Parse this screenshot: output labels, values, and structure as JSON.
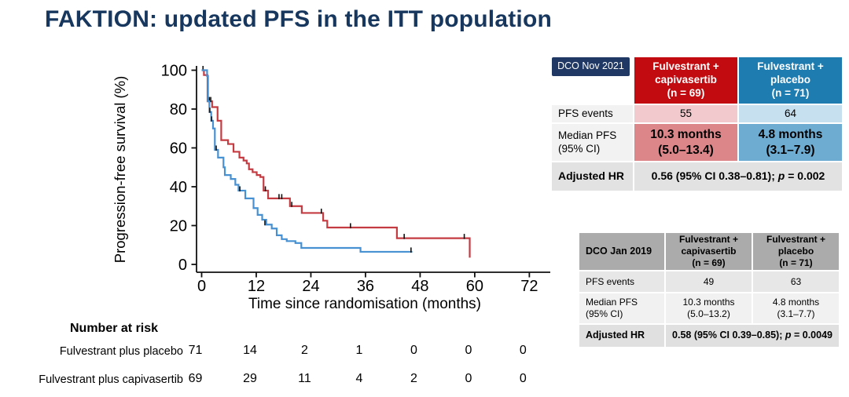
{
  "title": "FAKTION: updated PFS in the ITT population",
  "colors": {
    "title_navy": "#17375E",
    "navy_box": "#1F3864",
    "red_header": "#C20B10",
    "blue_header": "#1E7CB0",
    "pink_light": "#F2C9CC",
    "blue_light": "#C6E0EF",
    "pink_mid": "#DD868A",
    "blue_mid": "#6FACD2",
    "gray_label": "#F2F2F2",
    "gray_row": "#E2E2E2",
    "gray_header": "#ABABAB",
    "gray_row_a": "#E7E7E7",
    "gray_row_b": "#F1F1F1",
    "gray_row_dark": "#E0E0E0",
    "curve_red": "#C43B42",
    "curve_blue": "#4791D2",
    "axis_black": "#111111"
  },
  "chart_data": {
    "type": "line",
    "subtype": "kaplan-meier-step",
    "title": "",
    "xlabel": "Time since randomisation (months)",
    "ylabel": "Progression-free survival (%)",
    "xlim": [
      0,
      76
    ],
    "ylim": [
      0,
      100
    ],
    "xticks": [
      0,
      12,
      24,
      36,
      48,
      60,
      72
    ],
    "yticks": [
      0,
      20,
      40,
      60,
      80,
      100
    ],
    "grid": false,
    "legend": "none",
    "series": [
      {
        "name": "Fulvestrant plus capivasertib",
        "color_key": "curve_red",
        "steps": [
          [
            0,
            100
          ],
          [
            0.5,
            97.5
          ],
          [
            1.3,
            84
          ],
          [
            2.3,
            81
          ],
          [
            3.5,
            74
          ],
          [
            4.3,
            64
          ],
          [
            5.8,
            62
          ],
          [
            7.0,
            58
          ],
          [
            8.3,
            55
          ],
          [
            9.2,
            53.5
          ],
          [
            9.9,
            52
          ],
          [
            10.4,
            49
          ],
          [
            11.2,
            47.5
          ],
          [
            12.1,
            46
          ],
          [
            12.9,
            45
          ],
          [
            13.6,
            38
          ],
          [
            14.6,
            34
          ],
          [
            19.4,
            30
          ],
          [
            22.0,
            26.5
          ],
          [
            26.7,
            22.5
          ],
          [
            27.6,
            19
          ],
          [
            42.9,
            13.5
          ],
          [
            58.9,
            3.5
          ]
        ],
        "censors": [
          [
            0.3,
            100
          ],
          [
            1.7,
            84
          ],
          [
            2.0,
            84
          ],
          [
            14.0,
            38
          ],
          [
            17.0,
            34
          ],
          [
            17.6,
            34
          ],
          [
            19.8,
            30
          ],
          [
            26.3,
            26.5
          ],
          [
            32.7,
            19
          ],
          [
            44.5,
            13.5
          ],
          [
            57.7,
            13.5
          ]
        ]
      },
      {
        "name": "Fulvestrant plus placebo",
        "color_key": "curve_blue",
        "steps": [
          [
            0,
            100
          ],
          [
            1.2,
            97
          ],
          [
            1.4,
            84
          ],
          [
            1.7,
            78.5
          ],
          [
            2.1,
            74
          ],
          [
            2.5,
            70
          ],
          [
            2.9,
            59
          ],
          [
            3.6,
            55
          ],
          [
            4.8,
            50
          ],
          [
            5.1,
            46
          ],
          [
            6.4,
            44
          ],
          [
            7.4,
            41
          ],
          [
            8.1,
            38
          ],
          [
            9.6,
            34
          ],
          [
            11.4,
            29
          ],
          [
            12.3,
            25.5
          ],
          [
            13.3,
            23
          ],
          [
            14.2,
            20.5
          ],
          [
            15.4,
            18.5
          ],
          [
            16.5,
            15
          ],
          [
            17.6,
            13
          ],
          [
            18.7,
            12
          ],
          [
            20.6,
            11
          ],
          [
            21.9,
            8.5
          ],
          [
            34.9,
            6.5
          ],
          [
            46.3,
            6.5
          ]
        ],
        "censors": [
          [
            1.8,
            78.5
          ],
          [
            2.2,
            74
          ],
          [
            3.2,
            59
          ],
          [
            8.4,
            38
          ],
          [
            13.9,
            20.5
          ],
          [
            46.0,
            6.5
          ]
        ]
      }
    ],
    "number_at_risk": {
      "heading": "Number at risk",
      "rows": [
        {
          "label": "Fulvestrant plus placebo",
          "values": [
            "71",
            "14",
            "2",
            "1",
            "0",
            "0",
            "0"
          ]
        },
        {
          "label": "Fulvestrant plus capivasertib",
          "values": [
            "69",
            "29",
            "11",
            "4",
            "2",
            "0",
            "0"
          ]
        }
      ]
    }
  },
  "tables": [
    {
      "dco": "DCO Nov 2021",
      "col_headers": [
        [
          "Fulvestrant +",
          "capivasertib",
          "(n = 69)"
        ],
        [
          "Fulvestrant +",
          "placebo",
          "(n = 71)"
        ]
      ],
      "rows": [
        {
          "label_lines": [
            "PFS events"
          ],
          "values": [
            [
              "55"
            ],
            [
              "64"
            ]
          ]
        },
        {
          "label_lines": [
            "Median PFS",
            "(95% CI)"
          ],
          "values": [
            [
              "10.3 months",
              "(5.0–13.4)"
            ],
            [
              "4.8 months",
              "(3.1–7.9)"
            ]
          ]
        }
      ],
      "hr": {
        "label": "Adjusted HR",
        "pre": "0.56 (95% CI 0.38–0.81); ",
        "p": "p",
        "post": " = 0.002"
      }
    },
    {
      "dco": "DCO Jan 2019",
      "col_headers": [
        [
          "Fulvestrant +",
          "capivasertib",
          "(n = 69)"
        ],
        [
          "Fulvestrant +",
          "placebo",
          "(n = 71)"
        ]
      ],
      "rows": [
        {
          "label_lines": [
            "PFS events"
          ],
          "values": [
            [
              "49"
            ],
            [
              "63"
            ]
          ]
        },
        {
          "label_lines": [
            "Median PFS",
            "(95% CI)"
          ],
          "values": [
            [
              "10.3 months",
              "(5.0–13.2)"
            ],
            [
              "4.8 months",
              "(3.1–7.7)"
            ]
          ]
        }
      ],
      "hr": {
        "label": "Adjusted HR",
        "pre": "0.58 (95% CI 0.39–0.85); ",
        "p": "p",
        "post": " = 0.0049"
      }
    }
  ]
}
